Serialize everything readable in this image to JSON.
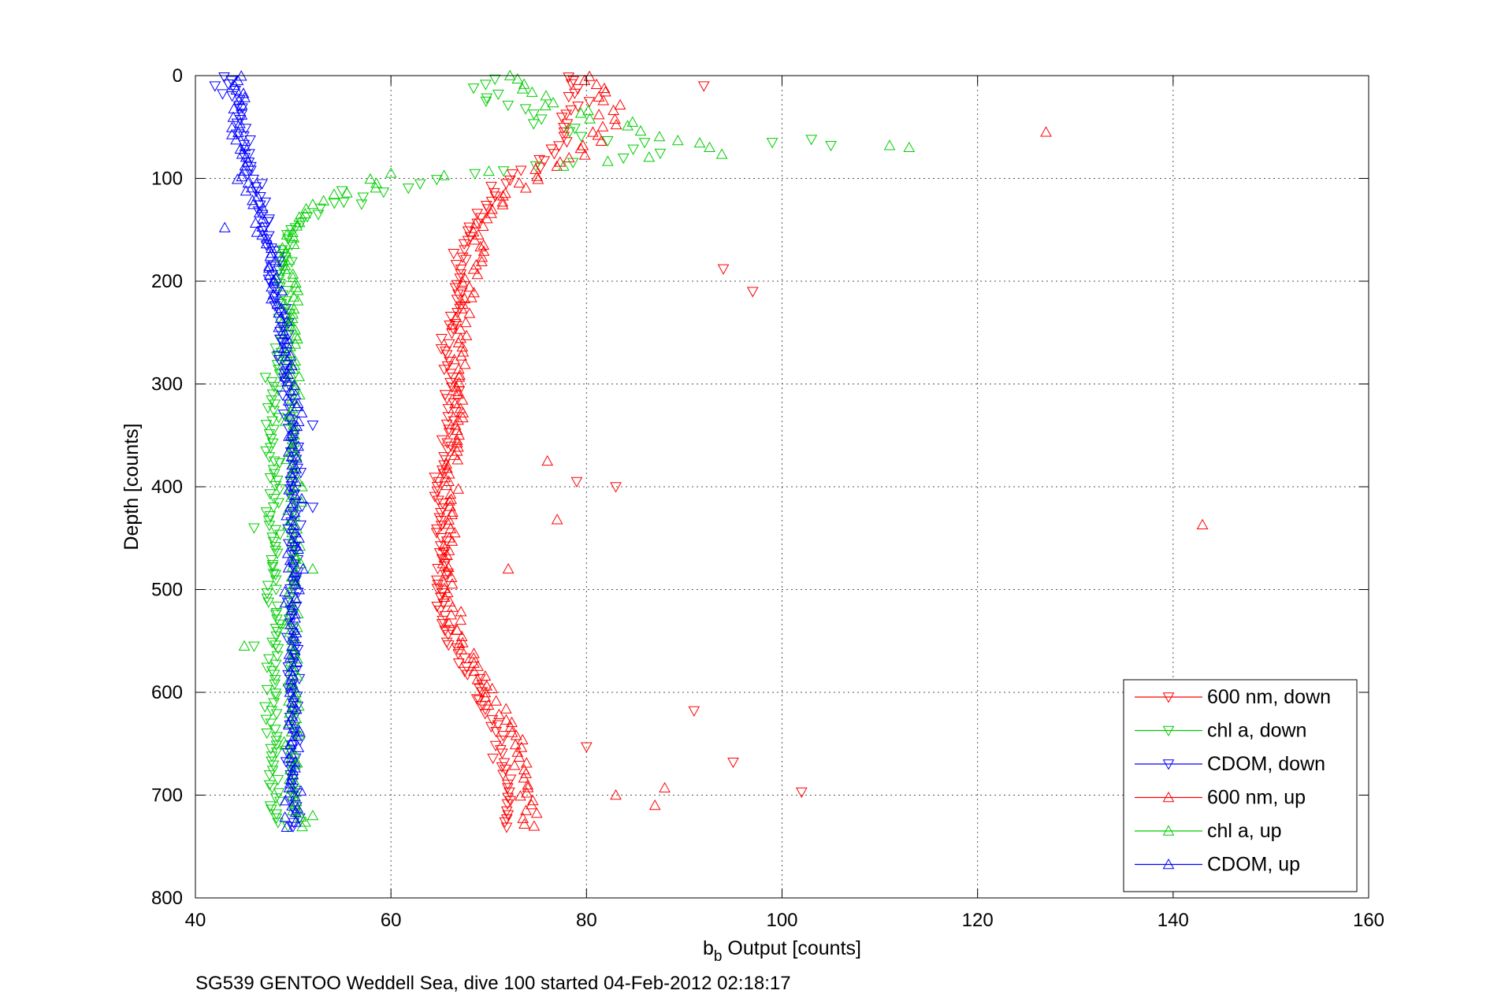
{
  "chart_data": {
    "type": "scatter",
    "xlabel": {
      "main": "b",
      "sub": "b",
      "rest": " Output [counts]"
    },
    "ylabel": "Depth [counts]",
    "footer": "SG539 GENTOO Weddell Sea, dive 100 started 04-Feb-2012 02:18:17",
    "xlim": [
      40,
      160
    ],
    "ylim": [
      800,
      0
    ],
    "y_reversed": true,
    "grid": true,
    "legend_position": "bottom-right",
    "xticks": [
      "40",
      "60",
      "80",
      "100",
      "120",
      "140",
      "160"
    ],
    "yticks": [
      "0",
      "100",
      "200",
      "300",
      "400",
      "500",
      "600",
      "700",
      "800"
    ],
    "profile_depths": [
      0,
      25,
      50,
      75,
      100,
      125,
      150,
      175,
      200,
      250,
      300,
      350,
      400,
      450,
      500,
      550,
      600,
      650,
      700,
      735
    ],
    "series": [
      {
        "name": "600 nm, down",
        "color": "#ff0000",
        "marker": "triangle-down",
        "values": [
          78,
          79,
          78,
          77,
          72,
          70,
          68,
          67,
          67,
          66,
          66,
          66,
          65,
          65,
          65,
          66,
          69,
          71,
          72,
          72
        ],
        "outliers": [
          [
            92,
            10
          ],
          [
            94,
            188
          ],
          [
            97,
            210
          ],
          [
            79,
            395
          ],
          [
            83,
            400
          ],
          [
            91,
            618
          ],
          [
            95,
            668
          ],
          [
            102,
            697
          ],
          [
            80,
            653
          ]
        ]
      },
      {
        "name": "chl a, down",
        "color": "#00cc00",
        "marker": "triangle-down",
        "values": [
          69,
          70,
          77,
          88,
          65,
          54,
          50,
          49,
          49,
          49,
          48,
          48,
          48,
          48,
          48,
          48,
          48,
          48,
          48,
          49
        ],
        "outliers": [
          [
            99,
            65
          ],
          [
            103,
            62
          ],
          [
            105,
            68
          ],
          [
            57,
            125
          ],
          [
            46,
            440
          ],
          [
            46,
            555
          ],
          [
            55,
            112
          ]
        ]
      },
      {
        "name": "CDOM, down",
        "color": "#0000ff",
        "marker": "triangle-down",
        "values": [
          43,
          44,
          45,
          45,
          46,
          47,
          47,
          48,
          48,
          49,
          49,
          50,
          50,
          50,
          50,
          50,
          50,
          50,
          50,
          50
        ],
        "outliers": [
          [
            42,
            10
          ],
          [
            52,
            340
          ],
          [
            52,
            420
          ]
        ]
      },
      {
        "name": "600 nm, up",
        "color": "#ff0000",
        "marker": "triangle-up",
        "values": [
          81,
          83,
          82,
          80,
          74,
          71,
          69,
          69,
          68,
          67,
          67,
          67,
          66,
          66,
          66,
          67,
          70,
          73,
          74,
          74
        ],
        "outliers": [
          [
            127,
            55
          ],
          [
            143,
            437
          ],
          [
            76,
            375
          ],
          [
            77,
            432
          ],
          [
            87,
            710
          ],
          [
            88,
            693
          ],
          [
            83,
            700
          ],
          [
            72,
            480
          ]
        ]
      },
      {
        "name": "chl a, up",
        "color": "#00cc00",
        "marker": "triangle-up",
        "values": [
          72,
          76,
          84,
          95,
          60,
          52,
          50,
          49,
          50,
          50,
          50,
          50,
          50,
          50,
          50,
          50,
          50,
          50,
          50,
          51
        ],
        "outliers": [
          [
            111,
            68
          ],
          [
            113,
            70
          ],
          [
            60,
            95
          ],
          [
            52,
            480
          ],
          [
            52,
            720
          ],
          [
            45,
            555
          ]
        ]
      },
      {
        "name": "CDOM, up",
        "color": "#0000ff",
        "marker": "triangle-up",
        "values": [
          44,
          45,
          44,
          45,
          45,
          46,
          47,
          48,
          48,
          49,
          50,
          50,
          50,
          50,
          50,
          50,
          50,
          50,
          50,
          50
        ],
        "outliers": [
          [
            43,
            148
          ],
          [
            51,
            480
          ]
        ]
      }
    ]
  }
}
